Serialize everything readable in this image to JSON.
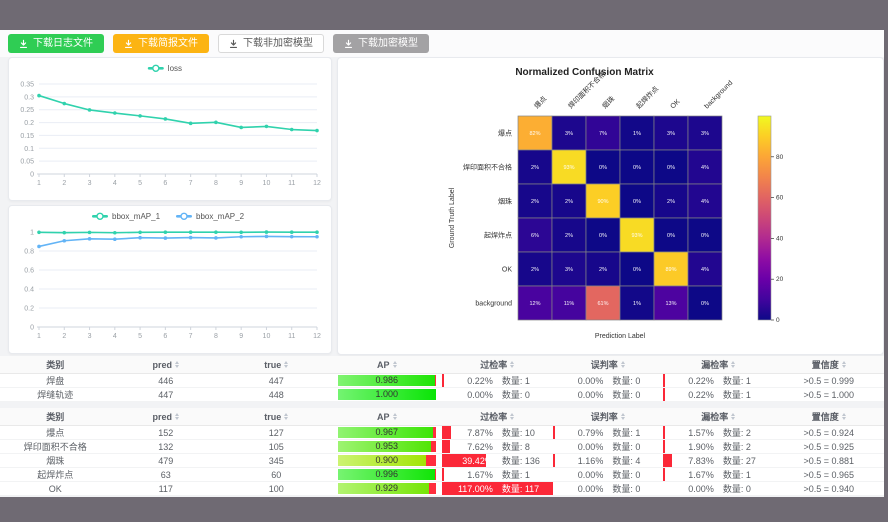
{
  "window": {
    "backdrop_color": "#6f6a73",
    "content_bg": "#f2f3f5"
  },
  "toolbar": {
    "buttons": [
      {
        "id": "download-log-file",
        "label": "下载日志文件",
        "bg": "#2fcd54",
        "fg": "#ffffff",
        "border": ""
      },
      {
        "id": "download-report-file",
        "label": "下载简报文件",
        "bg": "#fcb413",
        "fg": "#ffffff",
        "border": ""
      },
      {
        "id": "download-plain-model",
        "label": "下载非加密模型",
        "bg": "#ffffff",
        "fg": "#595959",
        "border": "#d9d9d9"
      },
      {
        "id": "download-encrypted-model",
        "label": "下载加密模型",
        "bg": "#a3a2a4",
        "fg": "#ffffff",
        "border": ""
      }
    ]
  },
  "chart_data": [
    {
      "id": "loss-chart",
      "type": "line",
      "x": [
        1,
        2,
        3,
        4,
        5,
        6,
        7,
        8,
        9,
        10,
        11,
        12
      ],
      "series": [
        {
          "name": "loss",
          "color": "#30d2ad",
          "values": [
            0.305,
            0.274,
            0.249,
            0.237,
            0.226,
            0.214,
            0.197,
            0.201,
            0.181,
            0.185,
            0.173,
            0.169
          ]
        }
      ],
      "ylim": [
        0,
        0.35
      ],
      "yticks": [
        0,
        0.05,
        0.1,
        0.15,
        0.2,
        0.25,
        0.3,
        0.35
      ],
      "legend_position": "top",
      "grid": true
    },
    {
      "id": "map-chart",
      "type": "line",
      "x": [
        1,
        2,
        3,
        4,
        5,
        6,
        7,
        8,
        9,
        10,
        11,
        12
      ],
      "series": [
        {
          "name": "bbox_mAP_1",
          "color": "#30d2ad",
          "values": [
            0.997,
            0.993,
            0.996,
            0.992,
            0.997,
            0.998,
            0.998,
            0.998,
            0.997,
            0.999,
            0.998,
            0.998
          ]
        },
        {
          "name": "bbox_mAP_2",
          "color": "#63b4f6",
          "values": [
            0.848,
            0.908,
            0.928,
            0.924,
            0.94,
            0.936,
            0.941,
            0.937,
            0.95,
            0.953,
            0.951,
            0.95
          ]
        }
      ],
      "ylim": [
        0,
        1
      ],
      "yticks": [
        0,
        0.2,
        0.4,
        0.6,
        0.8,
        1
      ],
      "legend_position": "top",
      "grid": true
    },
    {
      "id": "confusion-matrix",
      "type": "heatmap",
      "title": "Normalized Confusion Matrix",
      "xlabel": "Prediction Label",
      "ylabel": "Ground Truth Label",
      "categories": [
        "爆点",
        "焊印面积不合格",
        "烟珠",
        "起焊炸点",
        "OK",
        "background"
      ],
      "matrix": [
        [
          82,
          3,
          7,
          1,
          3,
          3
        ],
        [
          2,
          93,
          0,
          0,
          0,
          4
        ],
        [
          2,
          2,
          90,
          0,
          2,
          4
        ],
        [
          6,
          2,
          0,
          93,
          0,
          0
        ],
        [
          2,
          3,
          2,
          0,
          89,
          4
        ],
        [
          12,
          11,
          61,
          1,
          13,
          0
        ]
      ],
      "unit": "%",
      "vmin": 0,
      "vmax": 100,
      "colorbar_ticks": [
        0,
        20,
        40,
        60,
        80
      ],
      "colormap": "plasma",
      "colormap_stops": [
        [
          0.0,
          "#0d0887"
        ],
        [
          0.1,
          "#41049d"
        ],
        [
          0.2,
          "#6a00a8"
        ],
        [
          0.3,
          "#8f0da4"
        ],
        [
          0.4,
          "#b12a90"
        ],
        [
          0.5,
          "#cc4778"
        ],
        [
          0.6,
          "#e16462"
        ],
        [
          0.7,
          "#f2844b"
        ],
        [
          0.8,
          "#fca636"
        ],
        [
          0.9,
          "#fcce25"
        ],
        [
          1.0,
          "#f0f921"
        ]
      ]
    }
  ],
  "tables": {
    "headers": [
      {
        "label": "类别",
        "sortable": false
      },
      {
        "label": "pred",
        "sortable": true
      },
      {
        "label": "true",
        "sortable": true
      },
      {
        "label": "AP",
        "sortable": true
      },
      {
        "label": "过检率",
        "sortable": true
      },
      {
        "label": "误判率",
        "sortable": true
      },
      {
        "label": "漏检率",
        "sortable": true
      },
      {
        "label": "置信度",
        "sortable": true
      }
    ],
    "count_label": "数量:",
    "bar_colors": {
      "over_bar": "#fb2838",
      "ap_remainder": "#ff2e3d"
    },
    "groups": [
      {
        "rows": [
          {
            "name": "焊盘",
            "pred": "446",
            "gt": "447",
            "ap": 0.986,
            "ap_label": "0.986",
            "over_pct": "0.22%",
            "over_n": "1",
            "mis_pct": "0.00%",
            "mis_n": "0",
            "miss_pct": "0.22%",
            "miss_n": "1",
            "conf": ">0.5 = 0.999"
          },
          {
            "name": "焊缝轨迹",
            "pred": "447",
            "gt": "448",
            "ap": 1.0,
            "ap_label": "1.000",
            "over_pct": "0.00%",
            "over_n": "0",
            "mis_pct": "0.00%",
            "mis_n": "0",
            "miss_pct": "0.22%",
            "miss_n": "1",
            "conf": ">0.5 = 1.000"
          }
        ]
      },
      {
        "rows": [
          {
            "name": "爆点",
            "pred": "152",
            "gt": "127",
            "ap": 0.967,
            "ap_label": "0.967",
            "over_pct": "7.87%",
            "over_n": "10",
            "mis_pct": "0.79%",
            "mis_n": "1",
            "miss_pct": "1.57%",
            "miss_n": "2",
            "conf": ">0.5 = 0.924"
          },
          {
            "name": "焊印面积不合格",
            "pred": "132",
            "gt": "105",
            "ap": 0.953,
            "ap_label": "0.953",
            "over_pct": "7.62%",
            "over_n": "8",
            "mis_pct": "0.00%",
            "mis_n": "0",
            "miss_pct": "1.90%",
            "miss_n": "2",
            "conf": ">0.5 = 0.925"
          },
          {
            "name": "烟珠",
            "pred": "479",
            "gt": "345",
            "ap": 0.9,
            "ap_label": "0.900",
            "over_pct": "39.42%",
            "over_n": "136",
            "mis_pct": "1.16%",
            "mis_n": "4",
            "miss_pct": "7.83%",
            "miss_n": "27",
            "conf": ">0.5 = 0.881"
          },
          {
            "name": "起焊炸点",
            "pred": "63",
            "gt": "60",
            "ap": 0.996,
            "ap_label": "0.996",
            "over_pct": "1.67%",
            "over_n": "1",
            "mis_pct": "0.00%",
            "mis_n": "0",
            "miss_pct": "1.67%",
            "miss_n": "1",
            "conf": ">0.5 = 0.965"
          },
          {
            "name": "OK",
            "pred": "117",
            "gt": "100",
            "ap": 0.929,
            "ap_label": "0.929",
            "over_pct": "117.00%",
            "over_n": "117",
            "mis_pct": "0.00%",
            "mis_n": "0",
            "miss_pct": "0.00%",
            "miss_n": "0",
            "conf": ">0.5 = 0.940"
          }
        ]
      }
    ]
  }
}
